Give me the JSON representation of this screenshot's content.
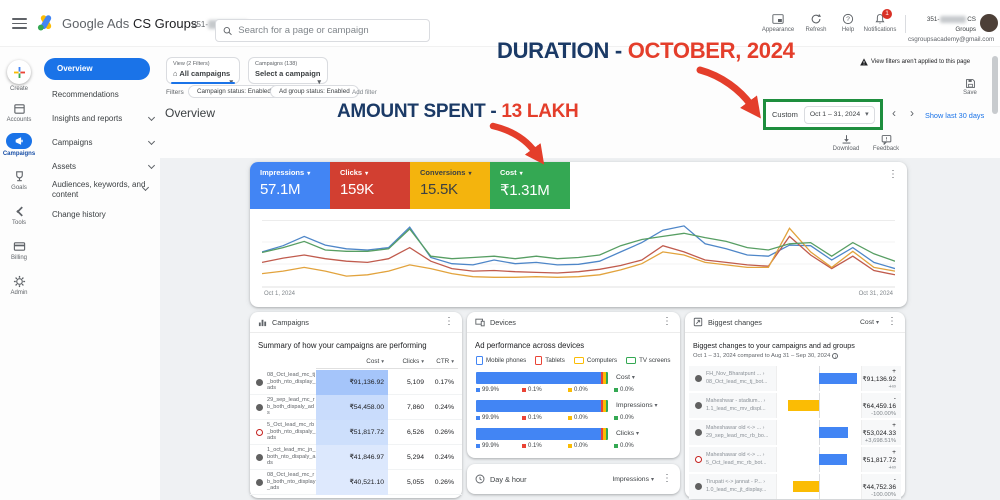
{
  "icons": {
    "more": "⋮",
    "caret": "▾",
    "chev_left": "‹",
    "chev_right": "›",
    "home": "⌂"
  },
  "topbar": {
    "product": "Google Ads",
    "account_name": "CS Groups",
    "account_id_prefix": "351-",
    "search_placeholder": "Search for a page or campaign",
    "actions": {
      "appearance": "Appearance",
      "refresh": "Refresh",
      "help": "Help",
      "notifications": "Notifications"
    },
    "notification_count": "1",
    "profile_name": "CS Groups",
    "profile_email": "csgroupsacademy@gmail.com"
  },
  "rail": {
    "items": [
      {
        "label": "Create"
      },
      {
        "label": "Accounts"
      },
      {
        "label": "Campaigns",
        "active": true
      },
      {
        "label": "Goals"
      },
      {
        "label": "Tools"
      },
      {
        "label": "Billing"
      },
      {
        "label": "Admin"
      }
    ]
  },
  "sidebar": {
    "items": [
      {
        "label": "Overview",
        "active": true
      },
      {
        "label": "Recommendations"
      },
      {
        "label": "Insights and reports",
        "chevron": true
      },
      {
        "label": "Campaigns",
        "chevron": true
      },
      {
        "label": "Assets",
        "chevron": true
      },
      {
        "label": "Audiences, keywords, and content",
        "chevron": true
      },
      {
        "label": "Change history"
      }
    ]
  },
  "filter_bar": {
    "view_label": "View (2 Filters)",
    "view_value": "All campaigns",
    "campaign_label": "Campaigns (138)",
    "campaign_value": "Select a campaign",
    "filters_label": "Filters",
    "chips": [
      "Campaign status: Enabled",
      "Ad group status: Enabled"
    ],
    "add_filter": "Add filter"
  },
  "header": {
    "title": "Overview",
    "warning": "View filters aren't applied to this page",
    "save": "Save",
    "custom": "Custom",
    "date_range": "Oct 1 – 31, 2024",
    "show_last": "Show last 30 days",
    "download": "Download",
    "feedback": "Feedback"
  },
  "annotations": {
    "duration_prefix": "DURATION - ",
    "duration_value": "OCTOBER, 2024",
    "amount_prefix": "AMOUNT SPENT - ",
    "amount_value": "13 LAKH",
    "navy": "#1b3a66",
    "red": "#e43e2b"
  },
  "metrics": [
    {
      "label": "Impressions",
      "value": "57.1M",
      "bg": "#4285f4",
      "fg": "#ffffff"
    },
    {
      "label": "Clicks",
      "value": "159K",
      "bg": "#d23f31",
      "fg": "#ffffff"
    },
    {
      "label": "Conversions",
      "value": "15.5K",
      "bg": "#f4b40d",
      "fg": "#3c4043"
    },
    {
      "label": "Cost",
      "value": "₹1.31M",
      "bg": "#34a853",
      "fg": "#ffffff"
    }
  ],
  "chart_data": {
    "type": "line",
    "x_unit": "day of October 2024",
    "x": [
      1,
      2,
      3,
      4,
      5,
      6,
      7,
      8,
      9,
      10,
      11,
      12,
      13,
      14,
      15,
      16,
      17,
      18,
      19,
      20,
      21,
      22,
      23,
      24,
      25,
      26,
      27,
      28,
      29,
      30,
      31
    ],
    "x_axis_labels": [
      "Oct 1, 2024",
      "Oct 31, 2024"
    ],
    "ylim": [
      0,
      100
    ],
    "y_note": "relative scale, y-axis unlabeled in UI",
    "grid": true,
    "legend_position": "none",
    "series": [
      {
        "name": "Impressions",
        "color": "#4e86c8",
        "values": [
          55,
          65,
          80,
          66,
          60,
          58,
          62,
          95,
          46,
          36,
          34,
          42,
          36,
          38,
          34,
          35,
          40,
          55,
          70,
          90,
          97,
          68,
          60,
          50,
          48,
          66,
          65,
          42,
          62,
          38,
          28
        ]
      },
      {
        "name": "Clicks",
        "color": "#c05b4d",
        "values": [
          38,
          45,
          50,
          44,
          40,
          38,
          44,
          62,
          40,
          28,
          24,
          25,
          23,
          22,
          21,
          23,
          27,
          33,
          42,
          65,
          55,
          42,
          38,
          34,
          32,
          80,
          50,
          28,
          48,
          25,
          18
        ]
      },
      {
        "name": "Conversions",
        "color": "#e2a33d",
        "values": [
          20,
          24,
          30,
          24,
          16,
          18,
          24,
          34,
          28,
          20,
          15,
          14,
          14,
          15,
          14,
          15,
          18,
          26,
          36,
          55,
          50,
          38,
          34,
          30,
          30,
          93,
          55,
          30,
          56,
          30,
          24
        ]
      },
      {
        "name": "Cost",
        "color": "#579e63",
        "values": [
          54,
          62,
          72,
          58,
          56,
          56,
          60,
          92,
          48,
          44,
          46,
          48,
          44,
          48,
          44,
          46,
          50,
          65,
          75,
          80,
          85,
          78,
          72,
          62,
          58,
          68,
          70,
          48,
          70,
          52,
          40
        ]
      }
    ]
  },
  "panels": {
    "campaigns": {
      "title": "Campaigns",
      "subtitle": "Summary of how your campaigns are performing",
      "columns": [
        "Cost",
        "Clicks",
        "CTR"
      ],
      "rows": [
        {
          "name": "08_Oct_lead_mc_tj_both_nto_display_ads",
          "cost": "₹91,136.92",
          "clicks": "5,109",
          "ctr": "0.17%",
          "heat": "#a5c5fa",
          "status": "enabled"
        },
        {
          "name": "29_sep_lead_mc_rb_both_dispaly_ads",
          "cost": "₹54,458.00",
          "clicks": "7,860",
          "ctr": "0.24%",
          "heat": "#c9dcfc",
          "status": "enabled"
        },
        {
          "name": "5_Oct_lead_mc_rb_both_nto_dispaly_ads",
          "cost": "₹51,817.72",
          "clicks": "6,526",
          "ctr": "0.26%",
          "heat": "#cddffc",
          "status": "removed"
        },
        {
          "name": "1_oct_lead_mc_jn_both_nto_dispaly_ads",
          "cost": "₹41,846.97",
          "clicks": "5,294",
          "ctr": "0.24%",
          "heat": "#dce8fd",
          "status": "enabled"
        },
        {
          "name": "08_Oct_lead_mc_rb_both_nto_display_ads",
          "cost": "₹40,521.10",
          "clicks": "5,055",
          "ctr": "0.26%",
          "heat": "#dee9fd",
          "status": "enabled"
        }
      ]
    },
    "devices": {
      "title": "Devices",
      "subtitle": "Ad performance across devices",
      "legend": [
        {
          "label": "Mobile phones",
          "color": "#4285f4"
        },
        {
          "label": "Tablets",
          "color": "#ea4335"
        },
        {
          "label": "Computers",
          "color": "#fbbc04"
        },
        {
          "label": "TV screens",
          "color": "#34a853"
        }
      ],
      "bars": [
        {
          "metric": "Cost"
        },
        {
          "metric": "Impressions"
        },
        {
          "metric": "Clicks"
        }
      ],
      "pcts": [
        "99.9%",
        "0.1%",
        "0.0%",
        "0.0%"
      ],
      "display_widths": [
        95.0,
        0.9,
        2.6,
        1.5
      ]
    },
    "day_hour": {
      "title": "Day & hour",
      "metric": "Impressions"
    },
    "biggest_changes": {
      "title": "Biggest changes",
      "metric_dropdown": "Cost",
      "heading": "Biggest changes to your campaigns and ad groups",
      "compare": "Oct 1 – 31, 2024 compared to Aug 31 – Sep 30, 2024",
      "rows": [
        {
          "name1": "FH_Nov_Bharatpunt ... ›",
          "name2": "08_Oct_lead_mc_tj_bot...",
          "amount": "+₹91,136.92",
          "pct": "+∞",
          "dir": "pos",
          "len": 38,
          "status": "enabled"
        },
        {
          "name1": "Maheshwar - stadium... ›",
          "name2": "1.1_lead_mc_mv_displ...",
          "amount": "-₹64,459.16",
          "pct": "-100.00%",
          "dir": "neg",
          "len": 31,
          "status": "enabled"
        },
        {
          "name1": "Maheshawar old <-> ... ›",
          "name2": "29_sep_lead_mc_rb_bo...",
          "amount": "+₹53,024.33",
          "pct": "+3,698.51%",
          "dir": "pos",
          "len": 29,
          "status": "enabled"
        },
        {
          "name1": "Maheshawar old <-> ... ›",
          "name2": "5_Oct_lead_mc_rb_bot...",
          "amount": "+₹51,817.72",
          "pct": "+∞",
          "dir": "pos",
          "len": 28,
          "status": "removed"
        },
        {
          "name1": "Tirupati <-> jannat - P... ›",
          "name2": "1.0_lead_mc_jt_display...",
          "amount": "-₹44,752.36",
          "pct": "-100.00%",
          "dir": "neg",
          "len": 26,
          "status": "enabled"
        }
      ]
    }
  }
}
